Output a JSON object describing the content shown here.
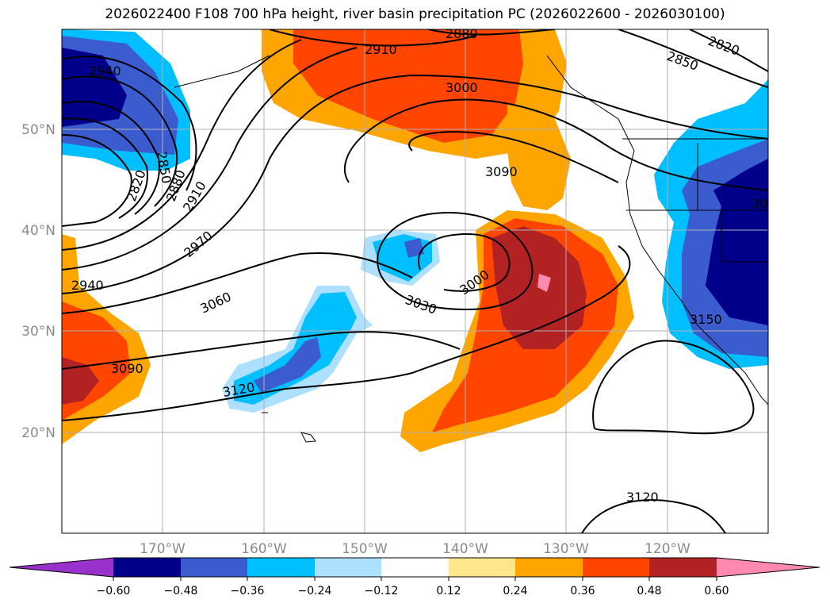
{
  "title": "2026022400 F108 700 hPa height, river basin precipitation PC (2026022600 - 2026030100)",
  "lat_ticks": [
    "50°N",
    "40°N",
    "30°N",
    "20°N"
  ],
  "lon_ticks": [
    "170°W",
    "160°W",
    "150°W",
    "140°W",
    "130°W",
    "120°W"
  ],
  "contour_labels": [
    "2940",
    "2820",
    "2850",
    "2880",
    "2910",
    "2970",
    "2940",
    "3060",
    "3090",
    "3120",
    "2880",
    "2910",
    "3000",
    "3090",
    "3030",
    "3000",
    "2820",
    "2850",
    "3120",
    "3150",
    "30"
  ],
  "colorbar": {
    "ticks": [
      "−0.60",
      "−0.48",
      "−0.36",
      "−0.24",
      "−0.12",
      "0.12",
      "0.24",
      "0.36",
      "0.48",
      "0.60"
    ],
    "colors": [
      "#9932CC",
      "#00008B",
      "#3B5CCF",
      "#00BFFF",
      "#ADDFFF",
      "#FFFFFF",
      "#FFE68C",
      "#FFA500",
      "#FF4500",
      "#B22222",
      "#FF8AB0"
    ]
  },
  "colors": {
    "dark_blue": "#00008B",
    "mid_blue": "#3B5CCF",
    "sky_blue": "#00BFFF",
    "light_blue": "#ADDFFF",
    "pale_yellow": "#FFE68C",
    "orange": "#FFA500",
    "red_orange": "#FF4500",
    "dark_red": "#B22222",
    "pink": "#FF8AB0"
  }
}
